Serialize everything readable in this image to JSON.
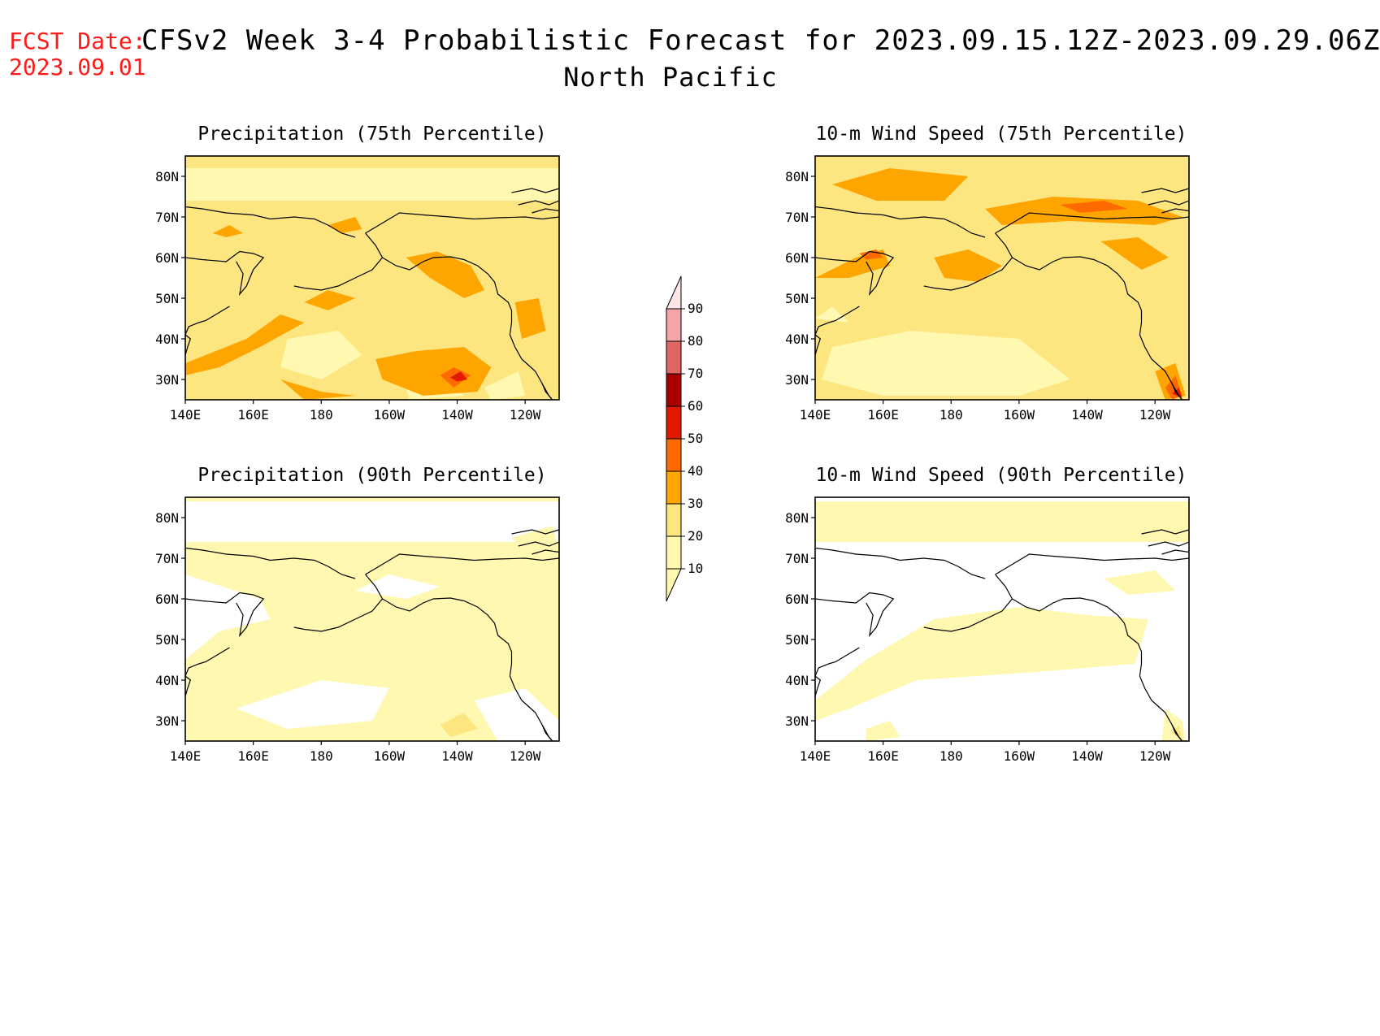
{
  "header": {
    "fcst_label": "FCST Date:",
    "fcst_date": "2023.09.01",
    "title": "CFSv2 Week 3-4 Probabilistic Forecast for 2023.09.15.12Z-2023.09.29.06Z",
    "subtitle": "North Pacific"
  },
  "panels": [
    {
      "id": "precip75",
      "title": "Precipitation (75th Percentile)"
    },
    {
      "id": "wind75",
      "title": "10-m Wind Speed (75th Percentile)"
    },
    {
      "id": "precip90",
      "title": "Precipitation (90th Percentile)"
    },
    {
      "id": "wind90",
      "title": "10-m Wind Speed (90th Percentile)"
    }
  ],
  "axes": {
    "lon_ticks": [
      "140E",
      "160E",
      "180",
      "160W",
      "140W",
      "120W"
    ],
    "lat_ticks": [
      "80N",
      "70N",
      "60N",
      "50N",
      "40N",
      "30N"
    ]
  },
  "colorbar": {
    "levels": [
      "10",
      "20",
      "30",
      "40",
      "50",
      "60",
      "70",
      "80",
      "90"
    ],
    "colors": [
      "#fff8b0",
      "#fde680",
      "#ffa500",
      "#ff6a00",
      "#e21800",
      "#a80000",
      "#e06666",
      "#f4a6a6",
      "#ffe4e8"
    ]
  }
}
